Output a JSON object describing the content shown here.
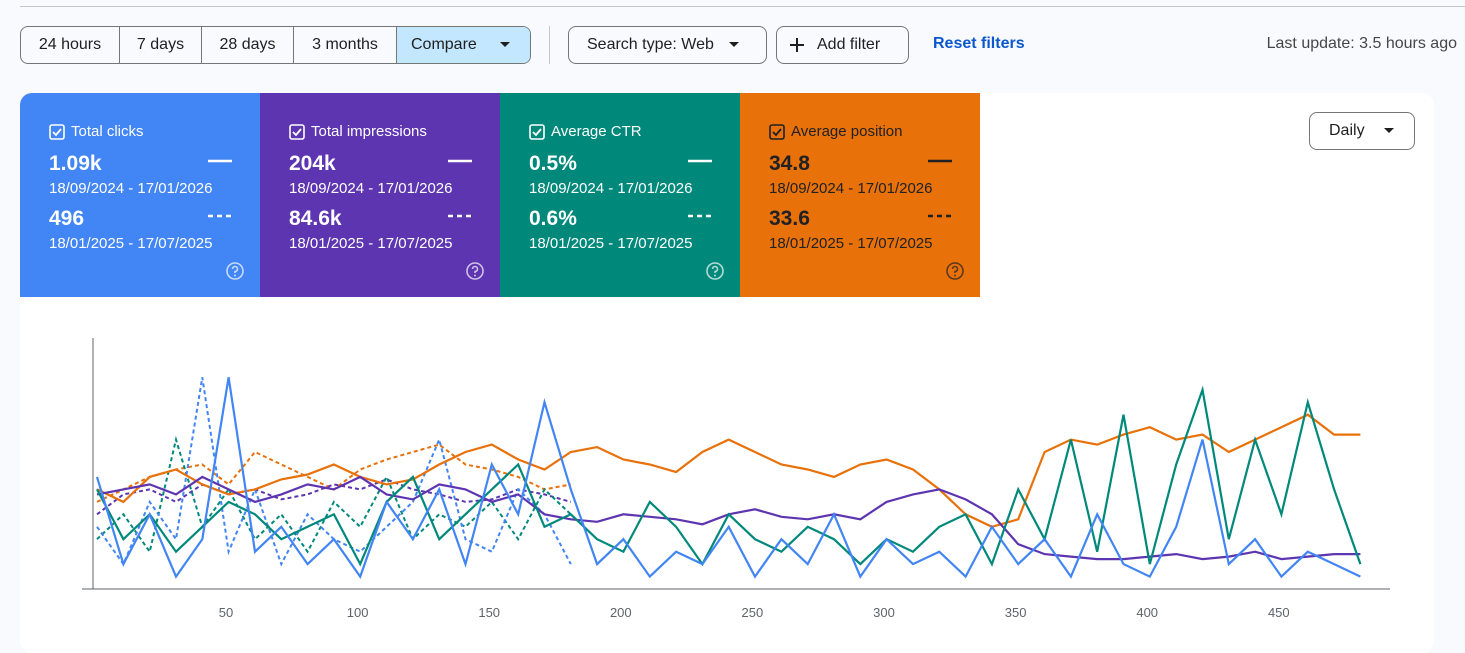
{
  "toolbar": {
    "ranges": [
      "24 hours",
      "7 days",
      "28 days",
      "3 months",
      "Compare"
    ],
    "search_type": "Search type: Web",
    "add_filter": "Add filter",
    "reset": "Reset filters",
    "last_update": "Last update: 3.5 hours ago"
  },
  "granularity": "Daily",
  "cards": [
    {
      "name": "Total clicks",
      "color": "#4285f4",
      "text_color": "#ffffff",
      "current": {
        "value": "1.09k",
        "range": "18/09/2024 - 17/01/2026"
      },
      "previous": {
        "value": "496",
        "range": "18/01/2025 - 17/07/2025"
      }
    },
    {
      "name": "Total impressions",
      "color": "#5e35b1",
      "text_color": "#ffffff",
      "current": {
        "value": "204k",
        "range": "18/09/2024 - 17/01/2026"
      },
      "previous": {
        "value": "84.6k",
        "range": "18/01/2025 - 17/07/2025"
      }
    },
    {
      "name": "Average CTR",
      "color": "#00897b",
      "text_color": "#ffffff",
      "current": {
        "value": "0.5%",
        "range": "18/09/2024 - 17/01/2026"
      },
      "previous": {
        "value": "0.6%",
        "range": "18/01/2025 - 17/07/2025"
      }
    },
    {
      "name": "Average position",
      "color": "#e8710a",
      "text_color": "#202124",
      "current": {
        "value": "34.8",
        "range": "18/09/2024 - 17/01/2026"
      },
      "previous": {
        "value": "33.6",
        "range": "18/01/2025 - 17/07/2025"
      }
    }
  ],
  "chart_data": {
    "type": "line",
    "x": [
      1,
      11,
      21,
      31,
      41,
      51,
      61,
      71,
      81,
      91,
      101,
      111,
      121,
      131,
      141,
      151,
      161,
      171,
      181,
      191,
      201,
      211,
      221,
      231,
      241,
      251,
      261,
      271,
      281,
      291,
      301,
      311,
      321,
      331,
      341,
      351,
      361,
      371,
      381,
      391,
      401,
      411,
      421,
      431,
      441,
      451,
      461,
      471,
      481
    ],
    "xlim": [
      0,
      490
    ],
    "xticks": [
      50,
      100,
      150,
      200,
      250,
      300,
      350,
      400,
      450
    ],
    "ylim": [
      0,
      100
    ],
    "series": [
      {
        "color": "#e8710a",
        "values": [
          40,
          35,
          45,
          48,
          42,
          38,
          40,
          44,
          46,
          50,
          45,
          42,
          44,
          50,
          55,
          58,
          52,
          48,
          55,
          57,
          52,
          50,
          47,
          55,
          60,
          55,
          50,
          48,
          45,
          50,
          52,
          48,
          40,
          30,
          25,
          28,
          55,
          60,
          58,
          62,
          65,
          60,
          62,
          55,
          60,
          65,
          70,
          62,
          62
        ],
        "compare_x": [
          1,
          11,
          21,
          31,
          41,
          51,
          61,
          71,
          81,
          91,
          101,
          111,
          121,
          131,
          141,
          151,
          161,
          171,
          181
        ],
        "compare_values": [
          35,
          40,
          45,
          48,
          50,
          42,
          55,
          50,
          45,
          40,
          48,
          52,
          55,
          58,
          50,
          48,
          45,
          40,
          42
        ]
      },
      {
        "color": "#5e35b1",
        "values": [
          38,
          40,
          42,
          38,
          45,
          40,
          35,
          38,
          42,
          40,
          45,
          38,
          36,
          42,
          40,
          35,
          38,
          30,
          28,
          27,
          30,
          29,
          28,
          26,
          30,
          32,
          29,
          28,
          30,
          28,
          35,
          38,
          40,
          36,
          30,
          18,
          14,
          13,
          12,
          12,
          13,
          14,
          12,
          13,
          15,
          12,
          13,
          14,
          14
        ],
        "compare_x": [
          1,
          11,
          21,
          31,
          41,
          51,
          61,
          71,
          81,
          91,
          101,
          111,
          121,
          131,
          141,
          151,
          161,
          171,
          181
        ],
        "compare_values": [
          30,
          38,
          40,
          35,
          42,
          38,
          40,
          36,
          38,
          42,
          40,
          44,
          40,
          38,
          35,
          36,
          40,
          38,
          35
        ]
      },
      {
        "color": "#00897b",
        "values": [
          40,
          20,
          30,
          15,
          25,
          35,
          30,
          20,
          25,
          30,
          10,
          35,
          45,
          20,
          30,
          40,
          50,
          25,
          30,
          20,
          15,
          35,
          25,
          10,
          30,
          20,
          15,
          25,
          20,
          10,
          20,
          15,
          25,
          30,
          10,
          40,
          20,
          60,
          15,
          70,
          10,
          50,
          80,
          20,
          60,
          30,
          75,
          40,
          10
        ],
        "compare_x": [
          1,
          11,
          21,
          31,
          41,
          51,
          61,
          71,
          81,
          91,
          101,
          111,
          121,
          131,
          141,
          151,
          161,
          171,
          181
        ],
        "compare_values": [
          20,
          30,
          15,
          60,
          25,
          40,
          20,
          30,
          15,
          35,
          25,
          45,
          20,
          30,
          25,
          35,
          20,
          40,
          30
        ]
      },
      {
        "color": "#4285f4",
        "values": [
          45,
          10,
          30,
          5,
          20,
          85,
          15,
          25,
          10,
          20,
          5,
          35,
          20,
          40,
          10,
          50,
          30,
          75,
          40,
          10,
          20,
          5,
          15,
          10,
          25,
          5,
          20,
          10,
          30,
          5,
          20,
          10,
          15,
          5,
          25,
          10,
          20,
          5,
          30,
          10,
          5,
          25,
          60,
          10,
          20,
          5,
          15,
          10,
          5
        ],
        "compare_x": [
          1,
          11,
          21,
          31,
          41,
          51,
          61,
          71,
          81,
          91,
          101,
          111,
          121,
          131,
          141,
          151,
          161,
          171,
          181
        ],
        "compare_values": [
          25,
          10,
          35,
          20,
          85,
          15,
          40,
          10,
          30,
          20,
          15,
          25,
          35,
          60,
          20,
          15,
          40,
          30,
          10
        ]
      }
    ]
  }
}
